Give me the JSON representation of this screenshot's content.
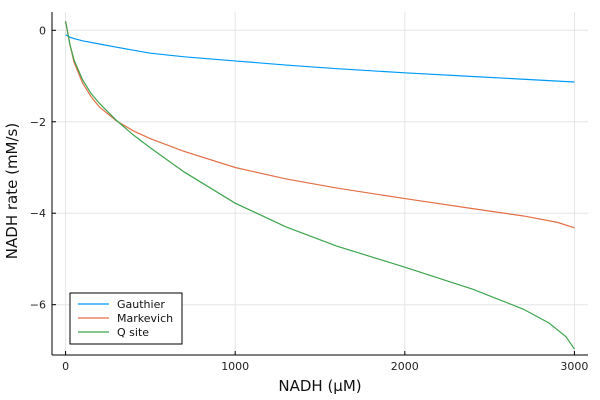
{
  "chart_data": {
    "type": "line",
    "title": "",
    "xlabel": "NADH (μM)",
    "ylabel": "NADH rate (mM/s)",
    "xlim": [
      -80,
      3080
    ],
    "ylim": [
      -7.1,
      0.4
    ],
    "xticks": [
      0,
      1000,
      2000,
      3000
    ],
    "yticks": [
      0,
      -2,
      -4,
      -6
    ],
    "xtick_labels": [
      "0",
      "1000",
      "2000",
      "3000"
    ],
    "ytick_labels": [
      "0",
      "−2",
      "−4",
      "−6"
    ],
    "grid": true,
    "legend_position": "bottom-left",
    "series": [
      {
        "name": "Gauthier",
        "color": "#009AFA",
        "x": [
          0,
          10,
          25,
          50,
          100,
          200,
          300,
          500,
          700,
          1000,
          1300,
          1600,
          2000,
          2400,
          2700,
          3000
        ],
        "y": [
          -0.1,
          -0.12,
          -0.15,
          -0.18,
          -0.23,
          -0.3,
          -0.37,
          -0.5,
          -0.58,
          -0.67,
          -0.76,
          -0.84,
          -0.93,
          -1.01,
          -1.07,
          -1.13
        ]
      },
      {
        "name": "Markevich",
        "color": "#E36F47",
        "x": [
          0,
          10,
          25,
          50,
          100,
          150,
          200,
          300,
          400,
          500,
          700,
          1000,
          1300,
          1600,
          2000,
          2400,
          2700,
          2900,
          3000
        ],
        "y": [
          0.2,
          0.0,
          -0.3,
          -0.7,
          -1.15,
          -1.45,
          -1.68,
          -1.98,
          -2.2,
          -2.37,
          -2.65,
          -3.0,
          -3.25,
          -3.45,
          -3.68,
          -3.9,
          -4.06,
          -4.2,
          -4.32
        ]
      },
      {
        "name": "Q site",
        "color": "#3EA44E",
        "x": [
          0,
          10,
          25,
          50,
          100,
          150,
          200,
          300,
          400,
          500,
          700,
          1000,
          1300,
          1600,
          2000,
          2400,
          2700,
          2850,
          2950,
          3000
        ],
        "y": [
          0.2,
          0.0,
          -0.3,
          -0.65,
          -1.08,
          -1.38,
          -1.6,
          -1.97,
          -2.29,
          -2.57,
          -3.1,
          -3.78,
          -4.3,
          -4.72,
          -5.18,
          -5.66,
          -6.1,
          -6.4,
          -6.7,
          -6.97
        ]
      }
    ]
  }
}
